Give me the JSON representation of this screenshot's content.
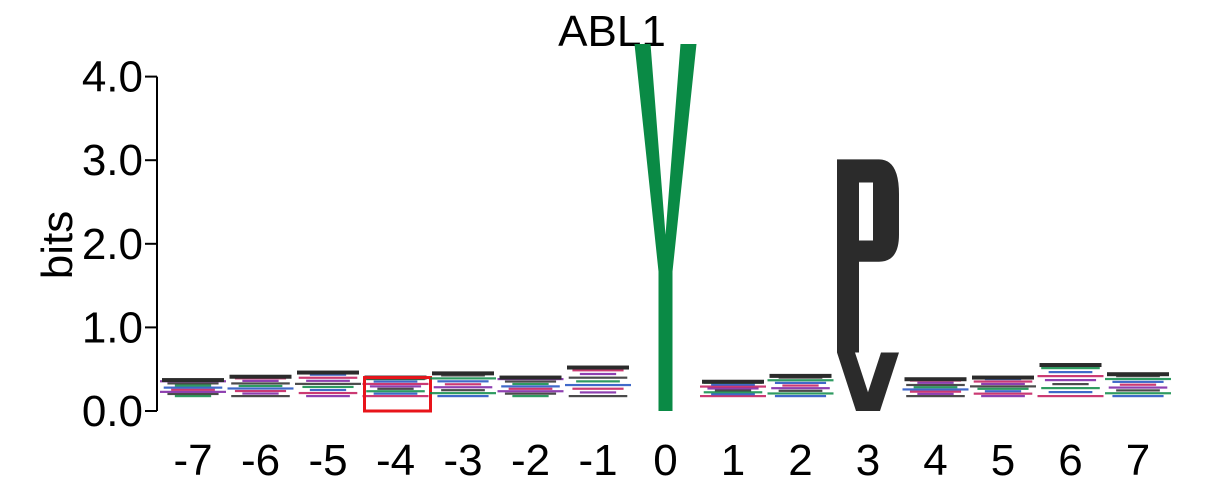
{
  "chart_data": {
    "type": "sequence-logo",
    "title": "ABL1",
    "ylabel": "bits",
    "ylim": [
      0,
      4.4
    ],
    "yticks": [
      "0.0",
      "1.0",
      "2.0",
      "3.0",
      "4.0"
    ],
    "positions": [
      "-7",
      "-6",
      "-5",
      "-4",
      "-3",
      "-2",
      "-1",
      "0",
      "1",
      "2",
      "3",
      "4",
      "5",
      "6",
      "7"
    ],
    "highlighted_position": "-4",
    "highlight_color": "#e8141a",
    "stacks": [
      {
        "pos": "-7",
        "total": 0.37,
        "letters": []
      },
      {
        "pos": "-6",
        "total": 0.41,
        "letters": []
      },
      {
        "pos": "-5",
        "total": 0.46,
        "letters": []
      },
      {
        "pos": "-4",
        "total": 0.4,
        "letters": []
      },
      {
        "pos": "-3",
        "total": 0.45,
        "letters": []
      },
      {
        "pos": "-2",
        "total": 0.4,
        "letters": []
      },
      {
        "pos": "-1",
        "total": 0.52,
        "letters": []
      },
      {
        "pos": "0",
        "total": 4.39,
        "letters": [
          {
            "letter": "Y",
            "bits": 4.39,
            "color": "#0a8a45"
          }
        ]
      },
      {
        "pos": "1",
        "total": 0.35,
        "letters": []
      },
      {
        "pos": "2",
        "total": 0.42,
        "letters": []
      },
      {
        "pos": "3",
        "total": 3.01,
        "letters": [
          {
            "letter": "V",
            "bits": 0.7,
            "color": "#2b2b2b"
          },
          {
            "letter": "P",
            "bits": 2.31,
            "color": "#2b2b2b"
          }
        ]
      },
      {
        "pos": "4",
        "total": 0.38,
        "letters": []
      },
      {
        "pos": "5",
        "total": 0.4,
        "letters": []
      },
      {
        "pos": "6",
        "total": 0.55,
        "letters": []
      },
      {
        "pos": "7",
        "total": 0.44,
        "letters": []
      }
    ],
    "residue_colors": [
      "#0a8a45",
      "#2b2b2b",
      "#7a1fa2",
      "#c2185b",
      "#1f4fbf"
    ]
  }
}
